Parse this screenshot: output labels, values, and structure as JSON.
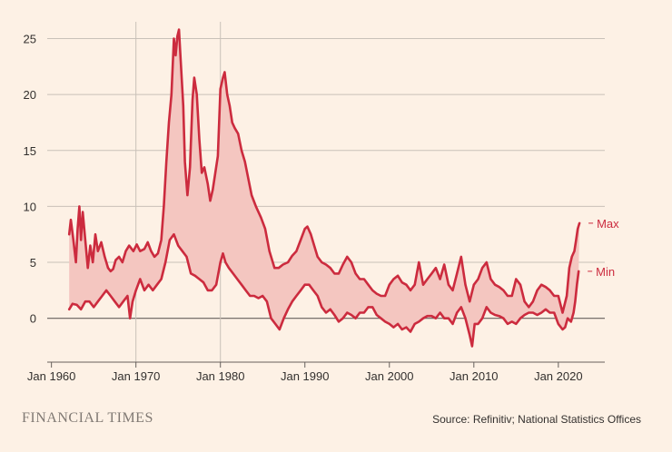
{
  "chart_data": {
    "type": "area",
    "title": "",
    "xlabel": "",
    "ylabel": "",
    "xlim": [
      1959.5,
      2025.5
    ],
    "ylim": [
      -4,
      26.5
    ],
    "y_ticks": [
      0,
      5,
      10,
      15,
      20,
      25
    ],
    "x_ticks": [
      {
        "value": 1960,
        "label": "Jan 1960"
      },
      {
        "value": 1970,
        "label": "Jan 1970"
      },
      {
        "value": 1980,
        "label": "Jan 1980"
      },
      {
        "value": 1990,
        "label": "Jan 1990"
      },
      {
        "value": 2000,
        "label": "Jan 2000"
      },
      {
        "value": 2010,
        "label": "Jan 2010"
      },
      {
        "value": 2020,
        "label": "Jan 2020"
      }
    ],
    "highlight_years": [
      1970,
      1980
    ],
    "series": [
      {
        "name": "Max",
        "color": "#cc2b3e",
        "points": [
          [
            1962.1,
            7.5
          ],
          [
            1962.3,
            8.8
          ],
          [
            1962.6,
            7.0
          ],
          [
            1962.9,
            5.0
          ],
          [
            1963.1,
            8.0
          ],
          [
            1963.3,
            10.0
          ],
          [
            1963.5,
            7.0
          ],
          [
            1963.7,
            9.5
          ],
          [
            1964.0,
            7.0
          ],
          [
            1964.3,
            4.5
          ],
          [
            1964.6,
            6.5
          ],
          [
            1964.9,
            5.0
          ],
          [
            1965.2,
            7.5
          ],
          [
            1965.5,
            6.0
          ],
          [
            1965.9,
            6.8
          ],
          [
            1966.3,
            5.5
          ],
          [
            1966.7,
            4.5
          ],
          [
            1967.0,
            4.2
          ],
          [
            1967.3,
            4.4
          ],
          [
            1967.6,
            5.2
          ],
          [
            1968.0,
            5.5
          ],
          [
            1968.4,
            5.0
          ],
          [
            1968.8,
            6.0
          ],
          [
            1969.2,
            6.5
          ],
          [
            1969.7,
            6.0
          ],
          [
            1970.1,
            6.6
          ],
          [
            1970.5,
            6.0
          ],
          [
            1971.0,
            6.2
          ],
          [
            1971.4,
            6.8
          ],
          [
            1971.8,
            6.0
          ],
          [
            1972.2,
            5.5
          ],
          [
            1972.6,
            5.8
          ],
          [
            1973.0,
            7.0
          ],
          [
            1973.3,
            10.0
          ],
          [
            1973.6,
            14.0
          ],
          [
            1973.9,
            17.5
          ],
          [
            1974.2,
            20.0
          ],
          [
            1974.5,
            25.0
          ],
          [
            1974.7,
            23.5
          ],
          [
            1974.9,
            25.2
          ],
          [
            1975.1,
            25.8
          ],
          [
            1975.3,
            23.0
          ],
          [
            1975.6,
            19.0
          ],
          [
            1975.8,
            14.0
          ],
          [
            1976.1,
            11.0
          ],
          [
            1976.4,
            13.5
          ],
          [
            1976.7,
            19.5
          ],
          [
            1976.9,
            21.5
          ],
          [
            1977.2,
            20.0
          ],
          [
            1977.5,
            16.0
          ],
          [
            1977.8,
            13.0
          ],
          [
            1978.1,
            13.5
          ],
          [
            1978.5,
            12.0
          ],
          [
            1978.8,
            10.5
          ],
          [
            1979.1,
            11.5
          ],
          [
            1979.4,
            13.0
          ],
          [
            1979.7,
            14.5
          ],
          [
            1980.0,
            20.5
          ],
          [
            1980.3,
            21.5
          ],
          [
            1980.5,
            22.0
          ],
          [
            1980.8,
            20.0
          ],
          [
            1981.1,
            19.0
          ],
          [
            1981.4,
            17.5
          ],
          [
            1981.7,
            17.0
          ],
          [
            1982.1,
            16.5
          ],
          [
            1982.5,
            15.0
          ],
          [
            1982.9,
            14.0
          ],
          [
            1983.3,
            12.5
          ],
          [
            1983.7,
            11.0
          ],
          [
            1984.2,
            10.0
          ],
          [
            1984.8,
            9.0
          ],
          [
            1985.3,
            8.0
          ],
          [
            1985.8,
            6.0
          ],
          [
            1986.4,
            4.5
          ],
          [
            1986.9,
            4.5
          ],
          [
            1987.4,
            4.8
          ],
          [
            1988.0,
            5.0
          ],
          [
            1988.5,
            5.6
          ],
          [
            1989.0,
            6.0
          ],
          [
            1989.5,
            7.0
          ],
          [
            1990.0,
            8.0
          ],
          [
            1990.3,
            8.2
          ],
          [
            1990.7,
            7.5
          ],
          [
            1991.1,
            6.5
          ],
          [
            1991.5,
            5.5
          ],
          [
            1992.0,
            5.0
          ],
          [
            1992.5,
            4.8
          ],
          [
            1993.0,
            4.5
          ],
          [
            1993.5,
            4.0
          ],
          [
            1994.0,
            4.0
          ],
          [
            1994.5,
            4.8
          ],
          [
            1995.0,
            5.5
          ],
          [
            1995.5,
            5.0
          ],
          [
            1996.0,
            4.0
          ],
          [
            1996.5,
            3.5
          ],
          [
            1997.0,
            3.5
          ],
          [
            1997.5,
            3.0
          ],
          [
            1998.0,
            2.5
          ],
          [
            1998.5,
            2.2
          ],
          [
            1999.0,
            2.0
          ],
          [
            1999.5,
            2.0
          ],
          [
            2000.0,
            3.0
          ],
          [
            2000.5,
            3.5
          ],
          [
            2001.0,
            3.8
          ],
          [
            2001.5,
            3.2
          ],
          [
            2002.0,
            3.0
          ],
          [
            2002.5,
            2.5
          ],
          [
            2003.0,
            3.0
          ],
          [
            2003.5,
            5.0
          ],
          [
            2004.0,
            3.0
          ],
          [
            2004.5,
            3.5
          ],
          [
            2005.0,
            4.0
          ],
          [
            2005.5,
            4.5
          ],
          [
            2006.0,
            3.5
          ],
          [
            2006.5,
            4.8
          ],
          [
            2007.0,
            3.0
          ],
          [
            2007.5,
            2.5
          ],
          [
            2008.0,
            4.0
          ],
          [
            2008.5,
            5.5
          ],
          [
            2009.0,
            3.0
          ],
          [
            2009.5,
            1.5
          ],
          [
            2010.0,
            3.0
          ],
          [
            2010.5,
            3.5
          ],
          [
            2011.0,
            4.5
          ],
          [
            2011.5,
            5.0
          ],
          [
            2012.0,
            3.5
          ],
          [
            2012.5,
            3.0
          ],
          [
            2013.0,
            2.8
          ],
          [
            2013.5,
            2.5
          ],
          [
            2014.0,
            2.0
          ],
          [
            2014.5,
            2.0
          ],
          [
            2015.0,
            3.5
          ],
          [
            2015.5,
            3.0
          ],
          [
            2016.0,
            1.5
          ],
          [
            2016.5,
            1.0
          ],
          [
            2017.0,
            1.5
          ],
          [
            2017.5,
            2.5
          ],
          [
            2018.0,
            3.0
          ],
          [
            2018.5,
            2.8
          ],
          [
            2019.0,
            2.5
          ],
          [
            2019.5,
            2.0
          ],
          [
            2020.0,
            2.0
          ],
          [
            2020.5,
            0.5
          ],
          [
            2021.0,
            2.0
          ],
          [
            2021.3,
            4.5
          ],
          [
            2021.6,
            5.5
          ],
          [
            2021.9,
            6.0
          ],
          [
            2022.1,
            7.0
          ],
          [
            2022.3,
            8.0
          ],
          [
            2022.5,
            8.5
          ]
        ]
      },
      {
        "name": "Min",
        "color": "#cc2b3e",
        "points": [
          [
            1962.1,
            0.8
          ],
          [
            1962.5,
            1.3
          ],
          [
            1963.0,
            1.2
          ],
          [
            1963.5,
            0.8
          ],
          [
            1964.0,
            1.5
          ],
          [
            1964.5,
            1.5
          ],
          [
            1965.0,
            1.0
          ],
          [
            1965.5,
            1.5
          ],
          [
            1966.0,
            2.0
          ],
          [
            1966.5,
            2.5
          ],
          [
            1967.0,
            2.0
          ],
          [
            1967.5,
            1.5
          ],
          [
            1968.0,
            1.0
          ],
          [
            1968.5,
            1.5
          ],
          [
            1969.0,
            2.0
          ],
          [
            1969.3,
            0.0
          ],
          [
            1969.6,
            1.5
          ],
          [
            1970.0,
            2.5
          ],
          [
            1970.5,
            3.5
          ],
          [
            1971.0,
            2.5
          ],
          [
            1971.5,
            3.0
          ],
          [
            1972.0,
            2.5
          ],
          [
            1972.5,
            3.0
          ],
          [
            1973.0,
            3.5
          ],
          [
            1973.5,
            5.0
          ],
          [
            1974.0,
            7.0
          ],
          [
            1974.5,
            7.5
          ],
          [
            1975.0,
            6.5
          ],
          [
            1975.5,
            6.0
          ],
          [
            1976.0,
            5.5
          ],
          [
            1976.5,
            4.0
          ],
          [
            1977.0,
            3.8
          ],
          [
            1977.5,
            3.5
          ],
          [
            1978.0,
            3.2
          ],
          [
            1978.5,
            2.5
          ],
          [
            1979.0,
            2.5
          ],
          [
            1979.5,
            3.0
          ],
          [
            1980.0,
            5.0
          ],
          [
            1980.3,
            5.8
          ],
          [
            1980.6,
            5.0
          ],
          [
            1981.0,
            4.5
          ],
          [
            1981.5,
            4.0
          ],
          [
            1982.0,
            3.5
          ],
          [
            1982.5,
            3.0
          ],
          [
            1983.0,
            2.5
          ],
          [
            1983.5,
            2.0
          ],
          [
            1984.0,
            2.0
          ],
          [
            1984.5,
            1.8
          ],
          [
            1985.0,
            2.0
          ],
          [
            1985.5,
            1.5
          ],
          [
            1986.0,
            0.0
          ],
          [
            1986.5,
            -0.5
          ],
          [
            1987.0,
            -1.0
          ],
          [
            1987.5,
            0.0
          ],
          [
            1988.0,
            0.8
          ],
          [
            1988.5,
            1.5
          ],
          [
            1989.0,
            2.0
          ],
          [
            1989.5,
            2.5
          ],
          [
            1990.0,
            3.0
          ],
          [
            1990.5,
            3.0
          ],
          [
            1991.0,
            2.5
          ],
          [
            1991.5,
            2.0
          ],
          [
            1992.0,
            1.0
          ],
          [
            1992.5,
            0.5
          ],
          [
            1993.0,
            0.8
          ],
          [
            1993.5,
            0.3
          ],
          [
            1994.0,
            -0.3
          ],
          [
            1994.5,
            0.0
          ],
          [
            1995.0,
            0.5
          ],
          [
            1995.5,
            0.3
          ],
          [
            1996.0,
            0.0
          ],
          [
            1996.5,
            0.5
          ],
          [
            1997.0,
            0.5
          ],
          [
            1997.5,
            1.0
          ],
          [
            1998.0,
            1.0
          ],
          [
            1998.5,
            0.3
          ],
          [
            1999.0,
            0.0
          ],
          [
            1999.5,
            -0.3
          ],
          [
            2000.0,
            -0.5
          ],
          [
            2000.5,
            -0.8
          ],
          [
            2001.0,
            -0.5
          ],
          [
            2001.5,
            -1.0
          ],
          [
            2002.0,
            -0.8
          ],
          [
            2002.5,
            -1.2
          ],
          [
            2003.0,
            -0.5
          ],
          [
            2003.5,
            -0.3
          ],
          [
            2004.0,
            0.0
          ],
          [
            2004.5,
            0.2
          ],
          [
            2005.0,
            0.2
          ],
          [
            2005.5,
            0.0
          ],
          [
            2006.0,
            0.5
          ],
          [
            2006.5,
            0.0
          ],
          [
            2007.0,
            0.0
          ],
          [
            2007.5,
            -0.5
          ],
          [
            2008.0,
            0.5
          ],
          [
            2008.5,
            1.0
          ],
          [
            2009.0,
            0.0
          ],
          [
            2009.5,
            -1.5
          ],
          [
            2009.8,
            -2.5
          ],
          [
            2010.1,
            -0.5
          ],
          [
            2010.5,
            -0.5
          ],
          [
            2011.0,
            0.0
          ],
          [
            2011.5,
            1.0
          ],
          [
            2012.0,
            0.5
          ],
          [
            2012.5,
            0.3
          ],
          [
            2013.0,
            0.2
          ],
          [
            2013.5,
            0.0
          ],
          [
            2014.0,
            -0.5
          ],
          [
            2014.5,
            -0.3
          ],
          [
            2015.0,
            -0.5
          ],
          [
            2015.5,
            0.0
          ],
          [
            2016.0,
            0.3
          ],
          [
            2016.5,
            0.5
          ],
          [
            2017.0,
            0.5
          ],
          [
            2017.5,
            0.3
          ],
          [
            2018.0,
            0.5
          ],
          [
            2018.5,
            0.8
          ],
          [
            2019.0,
            0.5
          ],
          [
            2019.5,
            0.5
          ],
          [
            2020.0,
            -0.5
          ],
          [
            2020.5,
            -1.0
          ],
          [
            2020.8,
            -0.8
          ],
          [
            2021.1,
            0.0
          ],
          [
            2021.5,
            -0.3
          ],
          [
            2021.8,
            0.5
          ],
          [
            2022.0,
            1.5
          ],
          [
            2022.2,
            3.0
          ],
          [
            2022.4,
            4.2
          ]
        ]
      }
    ]
  },
  "footer": {
    "brand": "FINANCIAL TIMES",
    "source": "Source: Refinitiv; National Statistics Offices"
  },
  "colors": {
    "background": "#fdf1e5",
    "band_fill": "#f4c6c0",
    "line": "#cc2b3e",
    "grid": "#c9c1b8",
    "zero_line": "#66605c"
  }
}
